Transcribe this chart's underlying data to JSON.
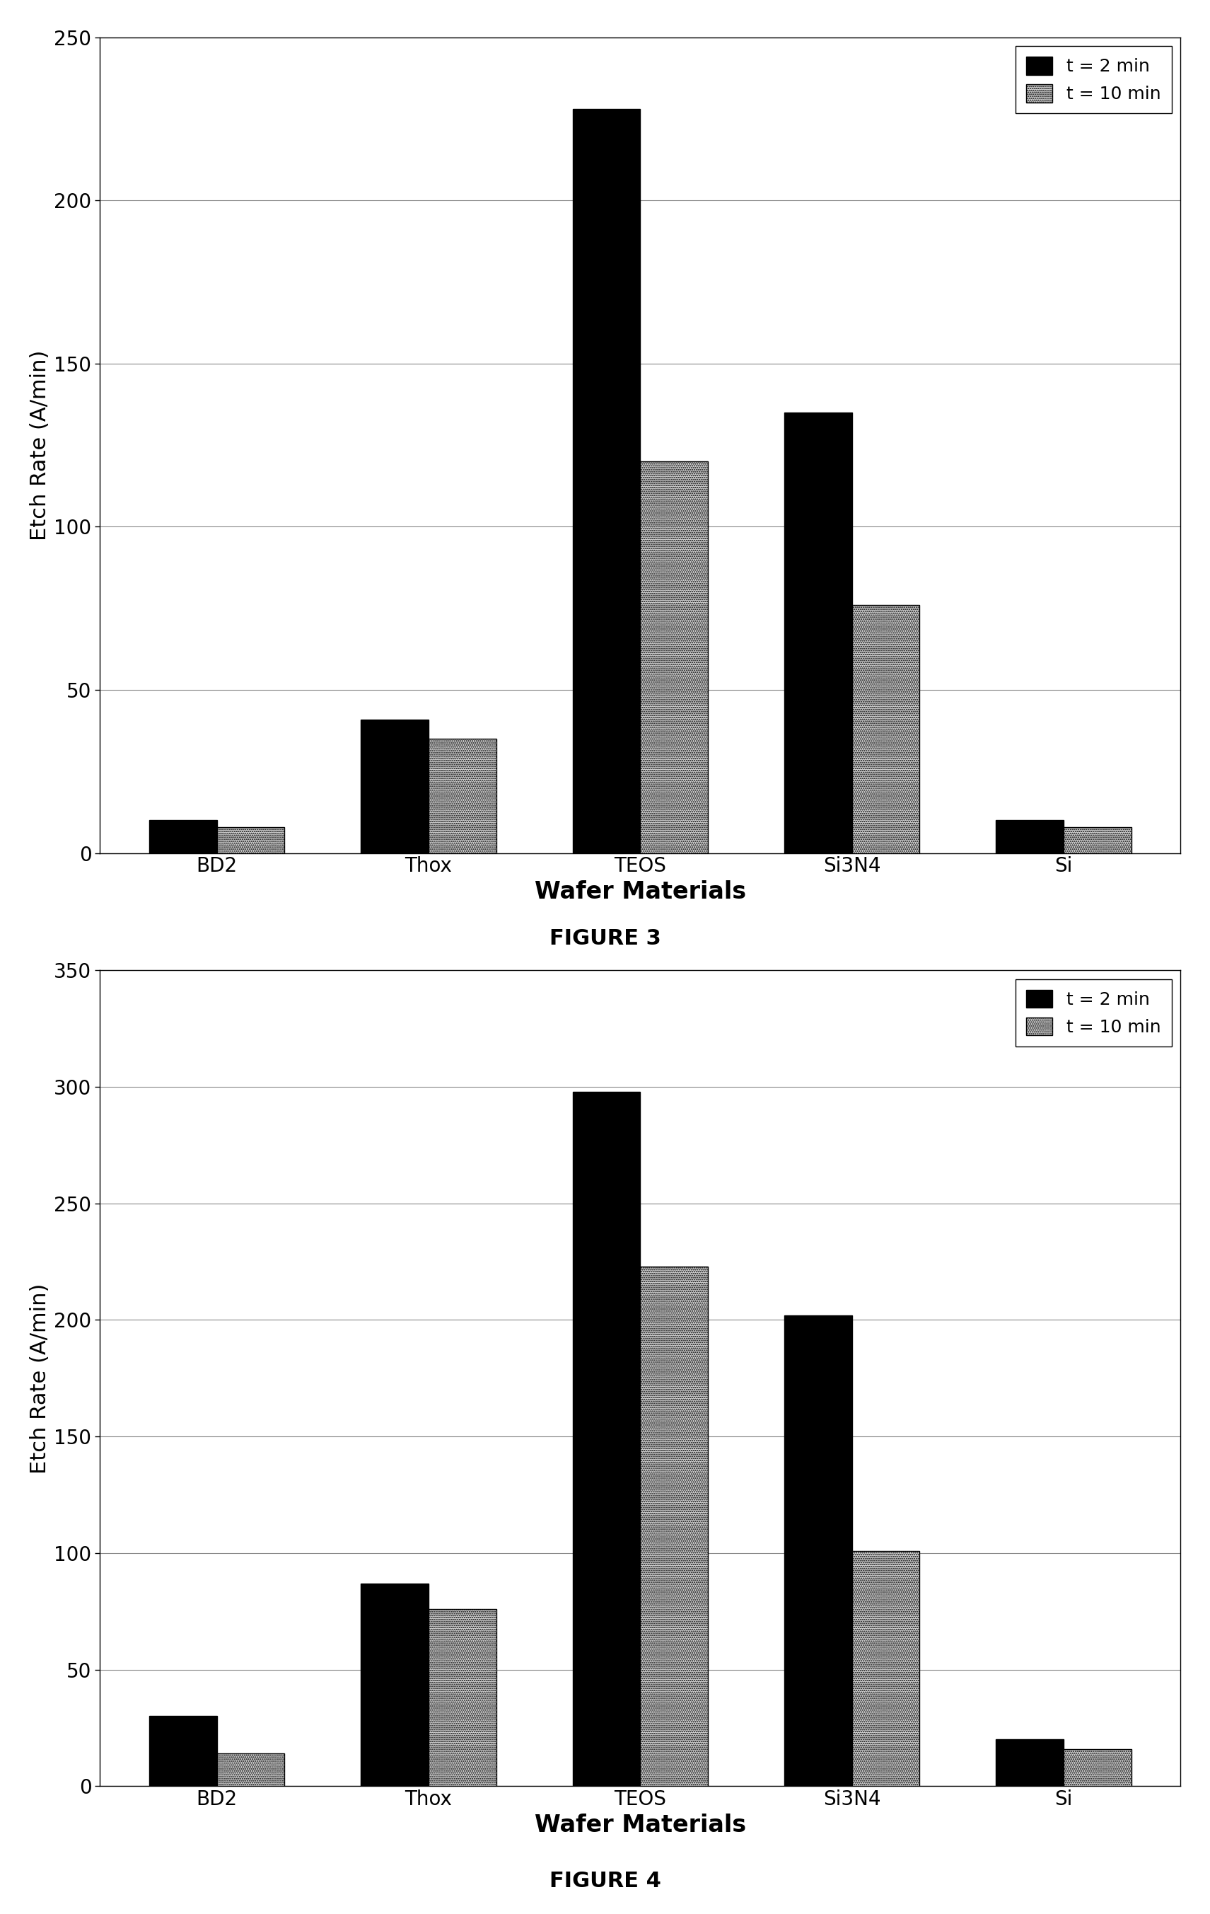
{
  "fig3": {
    "categories": [
      "BD2",
      "Thox",
      "TEOS",
      "Si3N4",
      "Si"
    ],
    "t2min": [
      10,
      41,
      228,
      135,
      10
    ],
    "t10min": [
      8,
      35,
      120,
      76,
      8
    ],
    "ylabel": "Etch Rate (A/min)",
    "xlabel": "Wafer Materials",
    "figure_label": "FIGURE 3",
    "ylim": [
      0,
      250
    ],
    "yticks": [
      0,
      50,
      100,
      150,
      200,
      250
    ],
    "legend_t2": "t = 2 min",
    "legend_t10": "t = 10 min"
  },
  "fig4": {
    "categories": [
      "BD2",
      "Thox",
      "TEOS",
      "Si3N4",
      "Si"
    ],
    "t2min": [
      30,
      87,
      298,
      202,
      20
    ],
    "t10min": [
      14,
      76,
      223,
      101,
      16
    ],
    "ylabel": "Etch Rate (A/min)",
    "xlabel": "Wafer Materials",
    "figure_label": "FIGURE 4",
    "ylim": [
      0,
      350
    ],
    "yticks": [
      0,
      50,
      100,
      150,
      200,
      250,
      300,
      350
    ],
    "legend_t2": "t = 2 min",
    "legend_t10": "t = 10 min"
  },
  "bar_color_t2": "#000000",
  "bar_color_t10": "#d0d0d0",
  "bar_width": 0.32,
  "bg_color": "#ffffff",
  "grid_color": "#888888",
  "axis_label_fontsize": 22,
  "tick_fontsize": 20,
  "legend_fontsize": 18,
  "figure_label_fontsize": 22,
  "xlabel_fontsize": 24
}
